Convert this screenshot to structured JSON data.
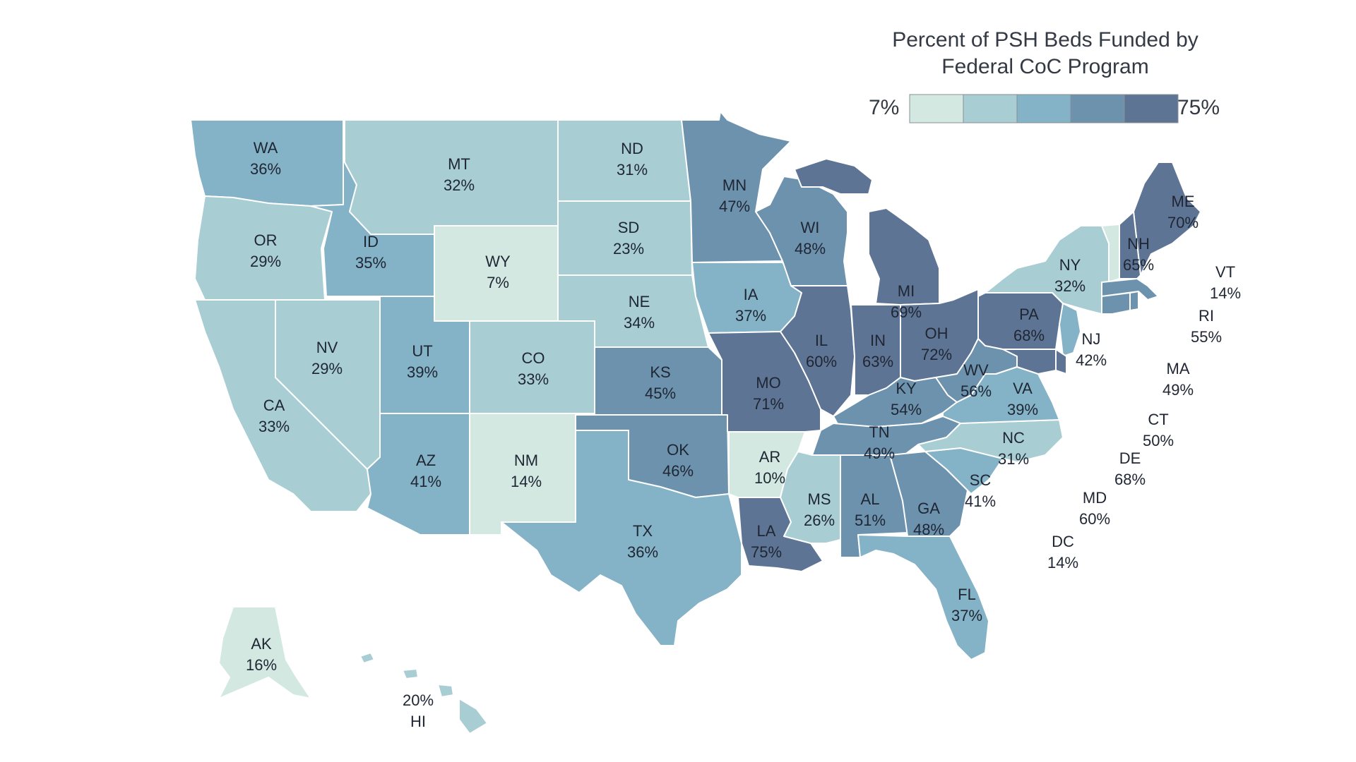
{
  "legend": {
    "title_line1": "Percent of PSH Beds Funded by",
    "title_line2": "Federal CoC Program",
    "min_label": "7%",
    "max_label": "75%",
    "bins": [
      "#d3e8e1",
      "#a8cdd3",
      "#84b2c6",
      "#6d92ae",
      "#5e7494"
    ]
  },
  "map_data": {
    "type": "choropleth",
    "metric": "Percent of PSH Beds Funded by Federal CoC Program",
    "states": [
      {
        "code": "WA",
        "value": "36%",
        "pct": 36
      },
      {
        "code": "OR",
        "value": "29%",
        "pct": 29
      },
      {
        "code": "CA",
        "value": "33%",
        "pct": 33
      },
      {
        "code": "NV",
        "value": "29%",
        "pct": 29
      },
      {
        "code": "ID",
        "value": "35%",
        "pct": 35
      },
      {
        "code": "MT",
        "value": "32%",
        "pct": 32
      },
      {
        "code": "WY",
        "value": "7%",
        "pct": 7
      },
      {
        "code": "UT",
        "value": "39%",
        "pct": 39
      },
      {
        "code": "AZ",
        "value": "41%",
        "pct": 41
      },
      {
        "code": "CO",
        "value": "33%",
        "pct": 33
      },
      {
        "code": "NM",
        "value": "14%",
        "pct": 14
      },
      {
        "code": "ND",
        "value": "31%",
        "pct": 31
      },
      {
        "code": "SD",
        "value": "23%",
        "pct": 23
      },
      {
        "code": "NE",
        "value": "34%",
        "pct": 34
      },
      {
        "code": "KS",
        "value": "45%",
        "pct": 45
      },
      {
        "code": "OK",
        "value": "46%",
        "pct": 46
      },
      {
        "code": "TX",
        "value": "36%",
        "pct": 36
      },
      {
        "code": "MN",
        "value": "47%",
        "pct": 47
      },
      {
        "code": "IA",
        "value": "37%",
        "pct": 37
      },
      {
        "code": "MO",
        "value": "71%",
        "pct": 71
      },
      {
        "code": "AR",
        "value": "10%",
        "pct": 10
      },
      {
        "code": "LA",
        "value": "75%",
        "pct": 75
      },
      {
        "code": "WI",
        "value": "48%",
        "pct": 48
      },
      {
        "code": "IL",
        "value": "60%",
        "pct": 60
      },
      {
        "code": "MI",
        "value": "69%",
        "pct": 69
      },
      {
        "code": "IN",
        "value": "63%",
        "pct": 63
      },
      {
        "code": "OH",
        "value": "72%",
        "pct": 72
      },
      {
        "code": "KY",
        "value": "54%",
        "pct": 54
      },
      {
        "code": "TN",
        "value": "49%",
        "pct": 49
      },
      {
        "code": "MS",
        "value": "26%",
        "pct": 26
      },
      {
        "code": "AL",
        "value": "51%",
        "pct": 51
      },
      {
        "code": "GA",
        "value": "48%",
        "pct": 48
      },
      {
        "code": "FL",
        "value": "37%",
        "pct": 37
      },
      {
        "code": "SC",
        "value": "41%",
        "pct": 41
      },
      {
        "code": "NC",
        "value": "31%",
        "pct": 31
      },
      {
        "code": "VA",
        "value": "39%",
        "pct": 39
      },
      {
        "code": "WV",
        "value": "56%",
        "pct": 56
      },
      {
        "code": "PA",
        "value": "68%",
        "pct": 68
      },
      {
        "code": "NY",
        "value": "32%",
        "pct": 32
      },
      {
        "code": "NJ",
        "value": "42%",
        "pct": 42
      },
      {
        "code": "ME",
        "value": "70%",
        "pct": 70
      },
      {
        "code": "NH",
        "value": "65%",
        "pct": 65
      },
      {
        "code": "VT",
        "value": "14%",
        "pct": 14
      },
      {
        "code": "RI",
        "value": "55%",
        "pct": 55
      },
      {
        "code": "MA",
        "value": "49%",
        "pct": 49
      },
      {
        "code": "CT",
        "value": "50%",
        "pct": 50
      },
      {
        "code": "DE",
        "value": "68%",
        "pct": 68
      },
      {
        "code": "MD",
        "value": "60%",
        "pct": 60
      },
      {
        "code": "DC",
        "value": "14%",
        "pct": 14
      },
      {
        "code": "AK",
        "value": "16%",
        "pct": 16
      },
      {
        "code": "HI",
        "value": "20%",
        "pct": 20
      }
    ]
  }
}
